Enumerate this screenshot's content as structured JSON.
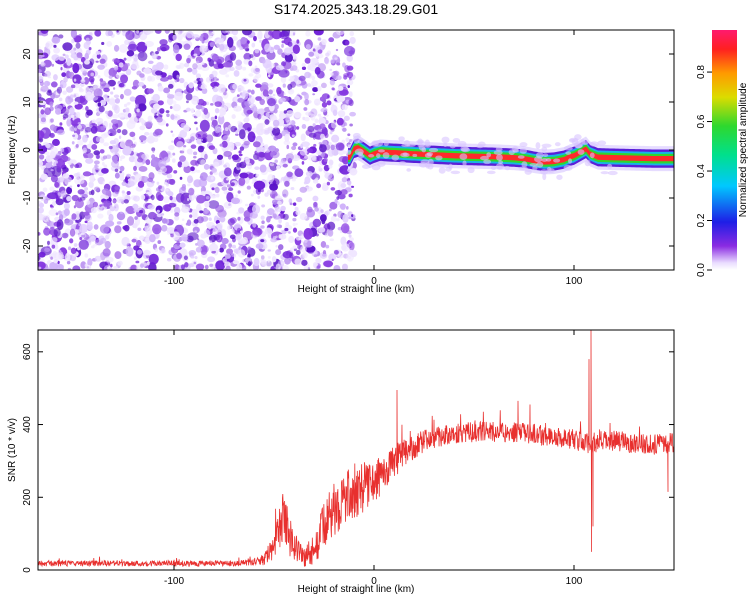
{
  "chart_data": [
    {
      "type": "heatmap",
      "title": "S174.2025.343.18.29.G01",
      "xlabel": "Height of straight line (km)",
      "ylabel": "Frequency (Hz)",
      "xlim": [
        -168,
        150
      ],
      "ylim": [
        -25,
        25
      ],
      "xticks": [
        -100,
        0,
        100
      ],
      "yticks": [
        -20,
        -10,
        0,
        10,
        20
      ],
      "noise_region_x": [
        -168,
        -13
      ],
      "signal_region_x": [
        -13,
        150
      ],
      "signal_track": {
        "x": [
          -12,
          -10,
          -8,
          -5,
          -2,
          0,
          3,
          7,
          12,
          20,
          30,
          40,
          50,
          60,
          70,
          75,
          80,
          85,
          90,
          95,
          98,
          100,
          103,
          106,
          108,
          112,
          120,
          130,
          140,
          150
        ],
        "freq": [
          -1.5,
          0.2,
          0.5,
          -0.3,
          -1.2,
          -0.8,
          -0.4,
          -0.5,
          -0.6,
          -0.8,
          -1.0,
          -1.2,
          -1.3,
          -1.4,
          -1.6,
          -1.8,
          -2.2,
          -2.5,
          -2.4,
          -2.0,
          -1.4,
          -1.2,
          -0.5,
          0.2,
          -0.8,
          -1.5,
          -1.6,
          -1.7,
          -1.8,
          -1.8
        ]
      },
      "colorbar": {
        "label": "Normalized spectral amplitude",
        "ticks": [
          "0.0",
          "0.2",
          "0.4",
          "0.6",
          "0.8"
        ],
        "range": [
          0,
          0.97
        ]
      }
    },
    {
      "type": "line",
      "title": "",
      "xlabel": "Height of straight line (km)",
      "ylabel": "SNR (10 * v/v)",
      "xlim": [
        -168,
        150
      ],
      "ylim": [
        0,
        660
      ],
      "xticks": [
        -100,
        0,
        100
      ],
      "yticks": [
        0,
        200,
        400,
        600
      ],
      "color": "#e8302e",
      "envelope": {
        "x": [
          -168,
          -140,
          -100,
          -70,
          -57,
          -52,
          -48,
          -45,
          -42,
          -38,
          -35,
          -30,
          -26,
          -22,
          -18,
          -14,
          -10,
          -6,
          -2,
          0,
          5,
          10,
          15,
          20,
          25,
          30,
          40,
          50,
          60,
          70,
          80,
          90,
          100,
          105,
          108,
          110,
          115,
          120,
          130,
          140,
          150
        ],
        "mean": [
          18,
          18,
          18,
          18,
          22,
          45,
          110,
          150,
          90,
          55,
          35,
          55,
          110,
          150,
          180,
          200,
          210,
          225,
          235,
          240,
          270,
          295,
          320,
          340,
          355,
          365,
          375,
          380,
          380,
          378,
          375,
          365,
          360,
          350,
          345,
          350,
          355,
          355,
          350,
          345,
          350
        ],
        "jitter": [
          8,
          8,
          8,
          8,
          10,
          30,
          55,
          70,
          55,
          40,
          30,
          45,
          60,
          70,
          75,
          75,
          70,
          70,
          65,
          60,
          50,
          45,
          40,
          35,
          30,
          30,
          28,
          28,
          28,
          28,
          28,
          28,
          28,
          28,
          28,
          28,
          28,
          28,
          28,
          28,
          28
        ]
      },
      "spikes": [
        {
          "x": 108.5,
          "y": 660
        },
        {
          "x": 108.8,
          "y": 50
        },
        {
          "x": 107.5,
          "y": 580
        },
        {
          "x": 109.5,
          "y": 120
        },
        {
          "x": 11.5,
          "y": 495
        },
        {
          "x": 72,
          "y": 465
        },
        {
          "x": 78,
          "y": 455
        },
        {
          "x": 147,
          "y": 215
        }
      ]
    }
  ]
}
